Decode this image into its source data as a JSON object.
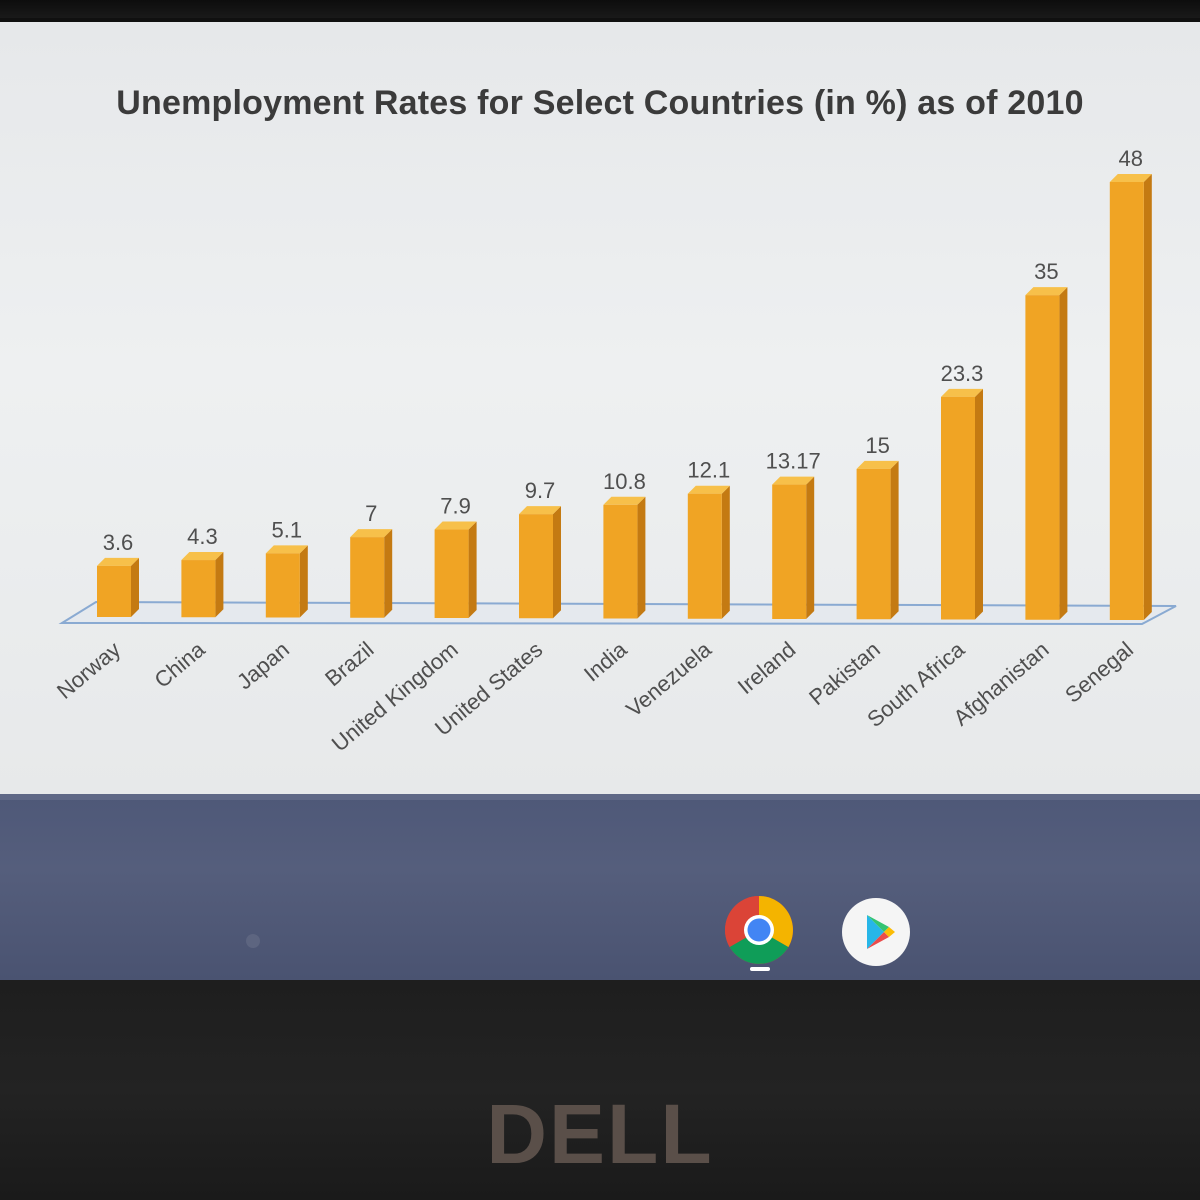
{
  "chart_data": {
    "type": "bar",
    "title": "Unemployment Rates for Select Countries (in %) as of 2010",
    "xlabel": "",
    "ylabel": "",
    "categories": [
      "Norway",
      "China",
      "Japan",
      "Brazil",
      "United Kingdom",
      "United States",
      "India",
      "Venezuela",
      "Ireland",
      "Pakistan",
      "South Africa",
      "Afghanistan",
      "Senegal"
    ],
    "values": [
      3.6,
      4.3,
      5.1,
      7,
      7.9,
      9.7,
      10.8,
      12.1,
      13.17,
      15,
      23.3,
      35,
      48
    ],
    "value_labels": [
      "3.6",
      "4.3",
      "5.1",
      "7",
      "7.9",
      "9.7",
      "10.8",
      "12.1",
      "13.17",
      "15",
      "23.3",
      "35",
      "48"
    ],
    "ylim": [
      0,
      48
    ],
    "grid": false,
    "legend": "none",
    "bar_style": "3d",
    "colors": {
      "bar_front": "#f0a424",
      "bar_side": "#c47a12",
      "bar_top": "#f7c04a",
      "floor_line": "#8aaad2",
      "label_text": "#4f4f4f"
    }
  },
  "taskbar": {
    "icons": [
      "chrome-icon",
      "play-store-icon"
    ],
    "active_app": "chrome-icon"
  },
  "device": {
    "brand_logo": "DELL"
  }
}
